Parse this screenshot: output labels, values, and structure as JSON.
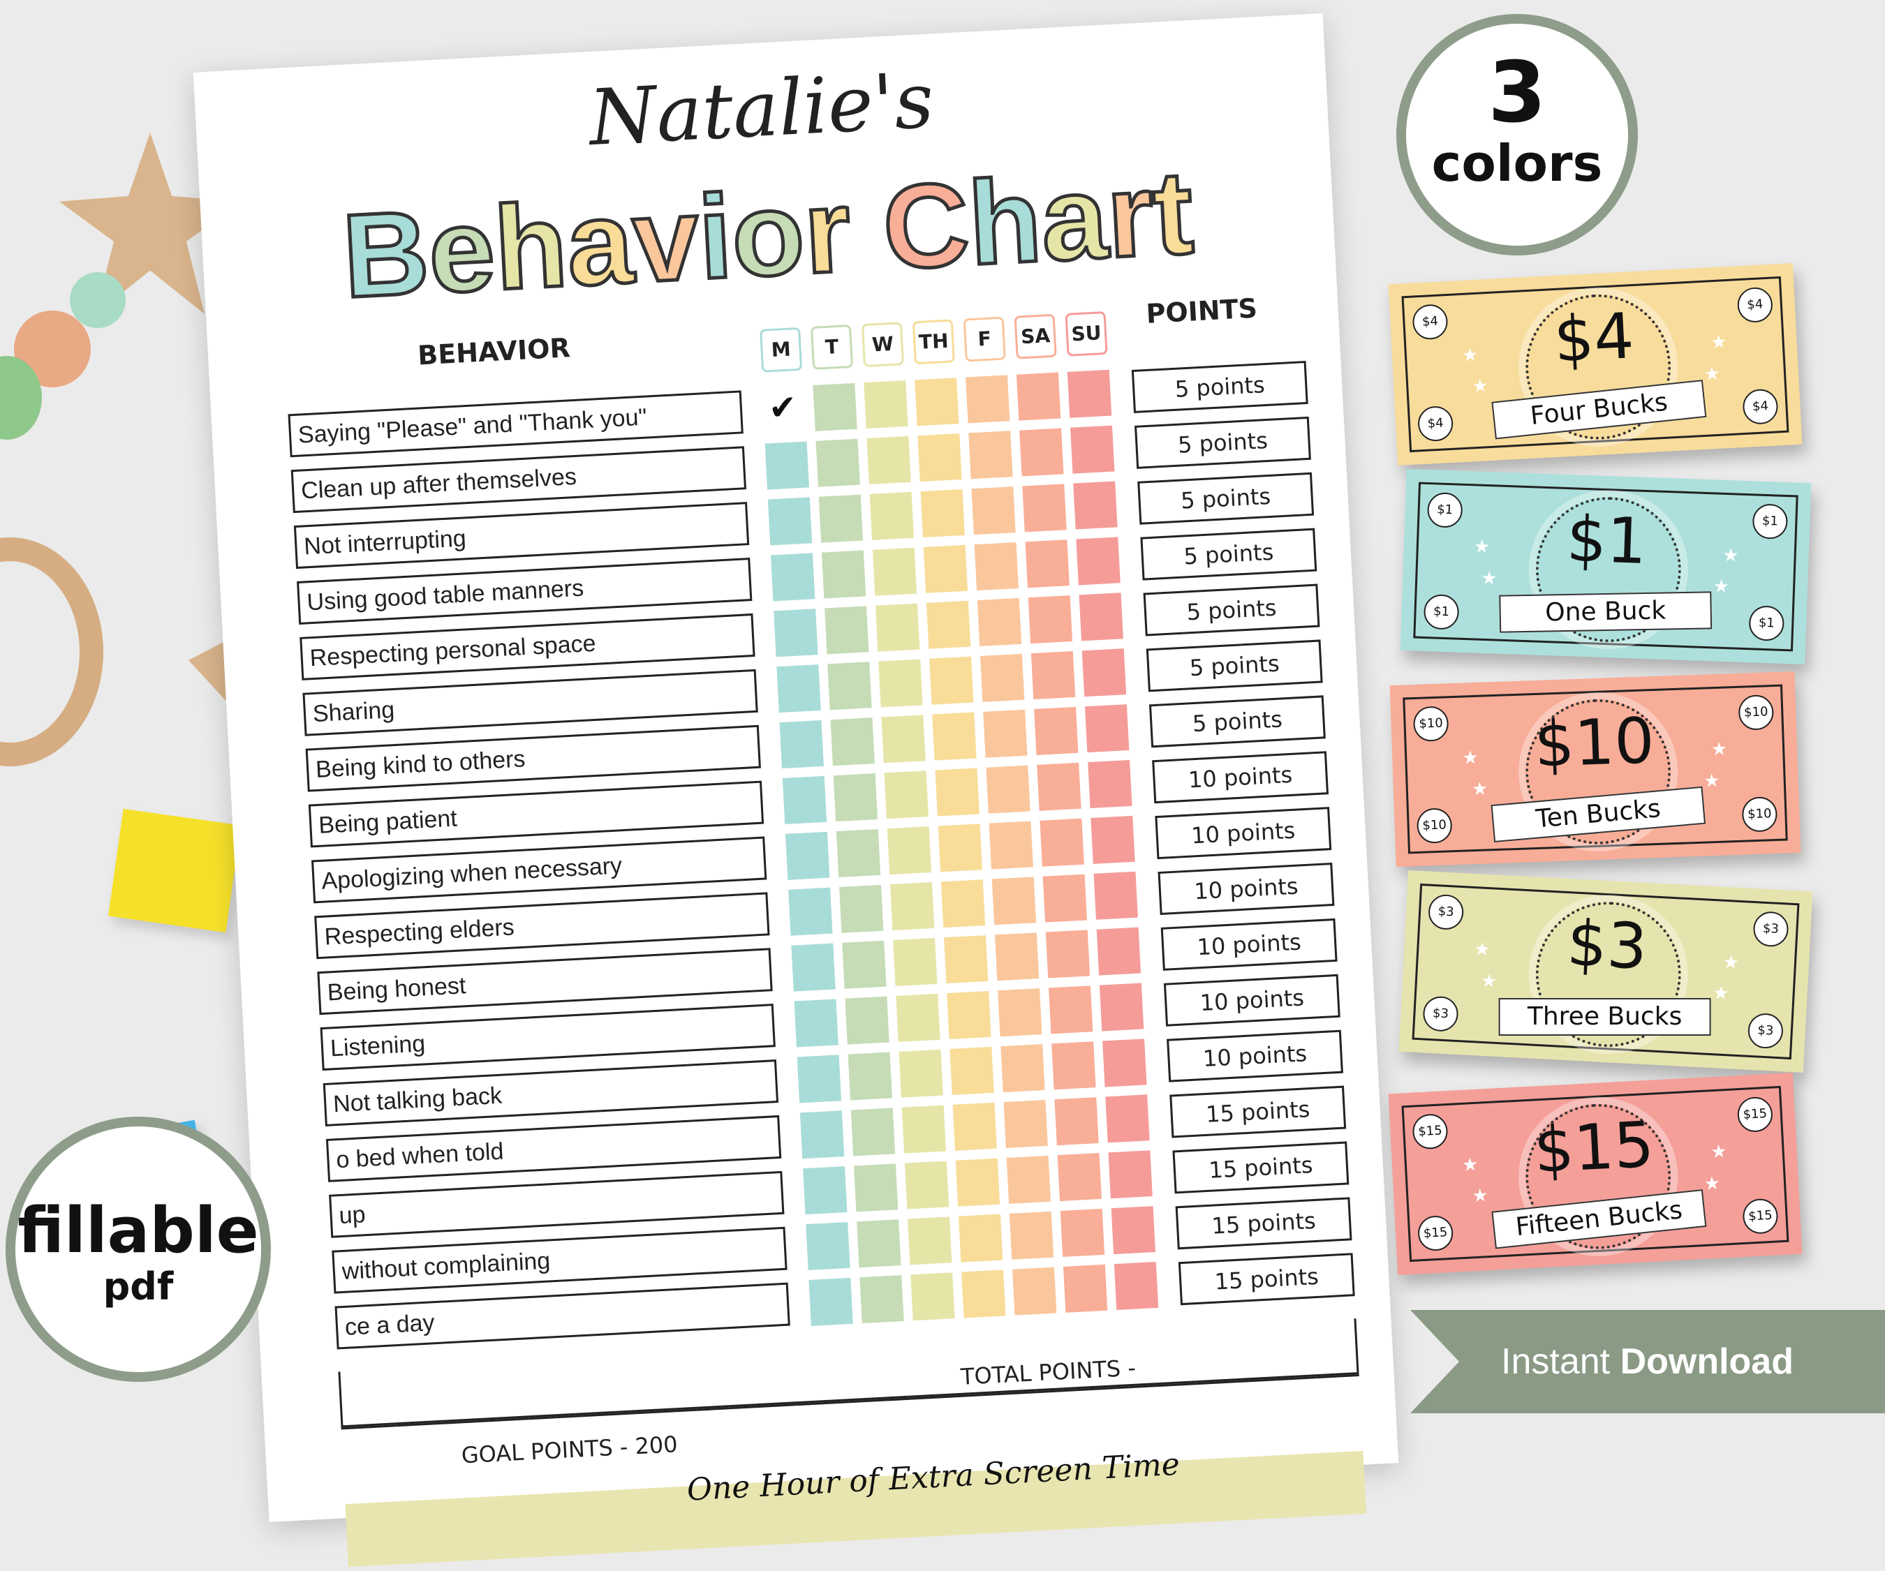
{
  "chart": {
    "child_name": "Natalie's",
    "title_letters": [
      "B",
      "e",
      "h",
      "a",
      "v",
      "i",
      "o",
      "r",
      " ",
      "C",
      "h",
      "a",
      "r",
      "t"
    ],
    "title_colors": [
      "#a8dcd8",
      "#c5dcb6",
      "#e6e5a8",
      "#f8dc98",
      "#fac79d",
      "#a8dcd8",
      "#c5dcb6",
      "#f8dc98",
      "",
      "#f9ae98",
      "#a8dcd8",
      "#e6e5a8",
      "#fac79d",
      "#f8dc98"
    ],
    "behavior_header": "BEHAVIOR",
    "points_header": "POINTS",
    "days": [
      {
        "label": "M",
        "color": "#a8dcd8"
      },
      {
        "label": "T",
        "color": "#c5dcb6"
      },
      {
        "label": "W",
        "color": "#e6e5a8"
      },
      {
        "label": "TH",
        "color": "#f8dc98"
      },
      {
        "label": "F",
        "color": "#fac79d"
      },
      {
        "label": "SA",
        "color": "#f9ae98"
      },
      {
        "label": "SU",
        "color": "#f59c99"
      }
    ],
    "rows": [
      {
        "behavior": "Saying \"Please\" and \"Thank you\"",
        "points": "5 points",
        "checked_day": "M"
      },
      {
        "behavior": "Clean up after themselves",
        "points": "5 points"
      },
      {
        "behavior": "Not interrupting",
        "points": "5 points"
      },
      {
        "behavior": "Using good table manners",
        "points": "5 points"
      },
      {
        "behavior": "Respecting personal space",
        "points": "5 points"
      },
      {
        "behavior": "Sharing",
        "points": "5 points"
      },
      {
        "behavior": "Being kind to others",
        "points": "5 points"
      },
      {
        "behavior": "Being patient",
        "points": "10 points"
      },
      {
        "behavior": "Apologizing when necessary",
        "points": "10 points"
      },
      {
        "behavior": "Respecting elders",
        "points": "10 points"
      },
      {
        "behavior": "Being honest",
        "points": "10 points"
      },
      {
        "behavior": "Listening",
        "points": "10 points"
      },
      {
        "behavior": "Not talking back",
        "points": "10 points"
      },
      {
        "behavior": "o bed when told",
        "points": "15 points"
      },
      {
        "behavior": "up",
        "points": "15 points"
      },
      {
        "behavior": "without complaining",
        "points": "15 points"
      },
      {
        "behavior": "ce a day",
        "points": "15 points"
      }
    ],
    "check_mark": "✔",
    "goal_points": "GOAL POINTS -  200",
    "total_points": "TOTAL POINTS -",
    "reward": "One Hour of Extra Screen Time"
  },
  "badges": {
    "colors": {
      "number": "3",
      "text": "colors"
    },
    "fillable": {
      "text": "fillable",
      "sub": "pdf"
    }
  },
  "bills": [
    {
      "amount": "$4",
      "label": "Four Bucks",
      "color": "#f8dc9c"
    },
    {
      "amount": "$1",
      "label": "One Buck",
      "color": "#ade0dc"
    },
    {
      "amount": "$10",
      "label": "Ten Bucks",
      "color": "#f8ad98"
    },
    {
      "amount": "$3",
      "label": "Three Bucks",
      "color": "#e6e4ae"
    },
    {
      "amount": "$15",
      "label": "Fifteen Bucks",
      "color": "#f59f99"
    }
  ],
  "banner": {
    "light": "Instant ",
    "bold": "Download",
    "color": "#8a9a85"
  }
}
